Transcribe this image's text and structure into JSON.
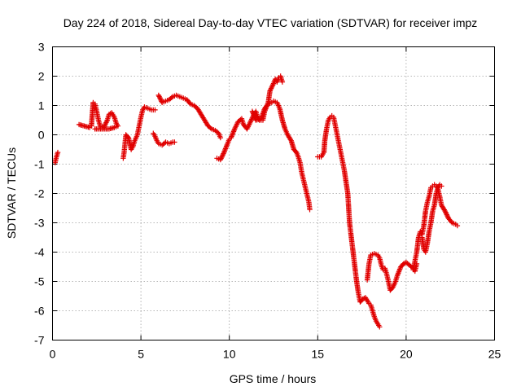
{
  "chart_data": {
    "type": "scatter",
    "title": "Day 224 of 2018, Sidereal Day-to-day VTEC variation (SDTVAR) for receiver impz",
    "xlabel": "GPS time / hours",
    "ylabel": "SDTVAR / TECUs",
    "xlim": [
      0,
      25
    ],
    "ylim": [
      -7,
      3
    ],
    "xticks": [
      "0",
      "5",
      "10",
      "15",
      "20",
      "25"
    ],
    "yticks": [
      "-7",
      "-6",
      "-5",
      "-4",
      "-3",
      "-2",
      "-1",
      "0",
      "1",
      "2",
      "3"
    ],
    "grid": true,
    "marker": "plus",
    "color": "#e00000",
    "series": [
      {
        "segments": [
          [
            [
              0.15,
              -0.95
            ],
            [
              0.2,
              -0.8
            ],
            [
              0.25,
              -0.7
            ],
            [
              0.3,
              -0.6
            ]
          ],
          [
            [
              1.5,
              0.35
            ],
            [
              1.8,
              0.3
            ],
            [
              2.1,
              0.25
            ],
            [
              2.2,
              0.3
            ],
            [
              2.3,
              1.1
            ],
            [
              2.4,
              1.05
            ],
            [
              2.5,
              0.8
            ],
            [
              2.6,
              0.5
            ],
            [
              2.7,
              0.3
            ],
            [
              2.9,
              0.25
            ],
            [
              3.1,
              0.5
            ],
            [
              3.2,
              0.7
            ],
            [
              3.35,
              0.75
            ],
            [
              3.5,
              0.6
            ],
            [
              3.6,
              0.4
            ],
            [
              3.7,
              0.3
            ],
            [
              3.5,
              0.25
            ],
            [
              3.2,
              0.2
            ],
            [
              2.8,
              0.2
            ],
            [
              2.4,
              0.2
            ]
          ],
          [
            [
              4.0,
              -0.8
            ],
            [
              4.05,
              -0.6
            ],
            [
              4.1,
              -0.3
            ],
            [
              4.15,
              0.0
            ],
            [
              4.3,
              -0.1
            ],
            [
              4.45,
              -0.5
            ],
            [
              4.55,
              -0.4
            ],
            [
              4.65,
              -0.2
            ],
            [
              4.8,
              0.0
            ],
            [
              4.9,
              0.3
            ],
            [
              5.0,
              0.6
            ],
            [
              5.1,
              0.85
            ],
            [
              5.2,
              0.95
            ],
            [
              5.4,
              0.9
            ],
            [
              5.6,
              0.85
            ],
            [
              5.8,
              0.85
            ]
          ],
          [
            [
              5.7,
              0.05
            ],
            [
              5.8,
              -0.05
            ],
            [
              5.9,
              -0.2
            ],
            [
              6.0,
              -0.3
            ],
            [
              6.2,
              -0.35
            ],
            [
              6.4,
              -0.25
            ],
            [
              6.6,
              -0.3
            ],
            [
              6.8,
              -0.25
            ],
            [
              6.9,
              -0.25
            ]
          ],
          [
            [
              6.0,
              1.35
            ],
            [
              6.2,
              1.1
            ],
            [
              6.4,
              1.15
            ],
            [
              6.6,
              1.2
            ],
            [
              6.8,
              1.3
            ],
            [
              7.0,
              1.35
            ],
            [
              7.2,
              1.3
            ],
            [
              7.4,
              1.25
            ],
            [
              7.6,
              1.2
            ],
            [
              7.8,
              1.05
            ],
            [
              8.0,
              1.0
            ],
            [
              8.2,
              0.9
            ],
            [
              8.4,
              0.7
            ],
            [
              8.6,
              0.5
            ],
            [
              8.8,
              0.3
            ],
            [
              9.0,
              0.2
            ],
            [
              9.2,
              0.15
            ],
            [
              9.4,
              0.05
            ],
            [
              9.5,
              -0.1
            ]
          ],
          [
            [
              9.3,
              -0.8
            ],
            [
              9.5,
              -0.85
            ],
            [
              9.7,
              -0.6
            ],
            [
              9.9,
              -0.3
            ],
            [
              10.0,
              -0.15
            ],
            [
              10.1,
              -0.1
            ],
            [
              10.3,
              0.2
            ],
            [
              10.5,
              0.45
            ],
            [
              10.7,
              0.55
            ],
            [
              10.8,
              0.35
            ],
            [
              11.0,
              0.2
            ],
            [
              11.2,
              0.45
            ],
            [
              11.4,
              0.7
            ],
            [
              11.5,
              0.8
            ],
            [
              11.6,
              0.6
            ],
            [
              11.7,
              0.5
            ],
            [
              11.9,
              0.5
            ],
            [
              12.0,
              0.8
            ],
            [
              12.2,
              1.1
            ],
            [
              12.3,
              1.5
            ],
            [
              12.5,
              1.75
            ],
            [
              12.6,
              1.9
            ],
            [
              12.7,
              1.8
            ],
            [
              12.8,
              1.95
            ],
            [
              12.9,
              2.0
            ],
            [
              13.0,
              1.8
            ]
          ],
          [
            [
              11.3,
              0.8
            ],
            [
              11.5,
              0.5
            ],
            [
              11.8,
              0.55
            ],
            [
              12.0,
              0.9
            ],
            [
              12.2,
              1.05
            ],
            [
              12.4,
              1.1
            ],
            [
              12.5,
              1.15
            ],
            [
              12.7,
              1.1
            ],
            [
              12.85,
              0.9
            ],
            [
              13.0,
              0.5
            ],
            [
              13.15,
              0.2
            ],
            [
              13.3,
              0.0
            ],
            [
              13.5,
              -0.2
            ],
            [
              13.65,
              -0.5
            ],
            [
              13.8,
              -0.6
            ],
            [
              13.9,
              -0.75
            ],
            [
              14.0,
              -0.95
            ],
            [
              14.1,
              -1.3
            ],
            [
              14.2,
              -1.55
            ],
            [
              14.3,
              -1.8
            ],
            [
              14.4,
              -2.05
            ],
            [
              14.5,
              -2.3
            ],
            [
              14.55,
              -2.55
            ]
          ],
          [
            [
              15.0,
              -0.75
            ],
            [
              15.2,
              -0.75
            ],
            [
              15.35,
              -0.6
            ],
            [
              15.4,
              -0.2
            ],
            [
              15.5,
              0.2
            ],
            [
              15.6,
              0.5
            ],
            [
              15.7,
              0.6
            ],
            [
              15.8,
              0.65
            ],
            [
              15.9,
              0.6
            ],
            [
              16.0,
              0.3
            ],
            [
              16.1,
              0.0
            ],
            [
              16.2,
              -0.3
            ],
            [
              16.3,
              -0.6
            ],
            [
              16.4,
              -0.9
            ],
            [
              16.5,
              -1.2
            ],
            [
              16.6,
              -1.6
            ],
            [
              16.7,
              -2.0
            ],
            [
              16.75,
              -2.5
            ],
            [
              16.8,
              -3.0
            ],
            [
              16.9,
              -3.5
            ],
            [
              17.0,
              -4.0
            ],
            [
              17.1,
              -4.5
            ],
            [
              17.2,
              -5.0
            ],
            [
              17.3,
              -5.4
            ],
            [
              17.4,
              -5.7
            ],
            [
              17.55,
              -5.6
            ],
            [
              17.7,
              -5.55
            ],
            [
              17.8,
              -5.65
            ],
            [
              17.9,
              -5.75
            ],
            [
              18.0,
              -5.8
            ],
            [
              18.1,
              -6.0
            ],
            [
              18.2,
              -6.2
            ],
            [
              18.3,
              -6.35
            ],
            [
              18.4,
              -6.45
            ],
            [
              18.5,
              -6.55
            ]
          ],
          [
            [
              17.8,
              -4.95
            ],
            [
              17.9,
              -4.4
            ],
            [
              18.0,
              -4.1
            ],
            [
              18.2,
              -4.05
            ],
            [
              18.4,
              -4.1
            ],
            [
              18.5,
              -4.2
            ],
            [
              18.6,
              -4.45
            ],
            [
              18.7,
              -4.6
            ],
            [
              18.8,
              -4.55
            ],
            [
              18.9,
              -4.75
            ],
            [
              19.0,
              -5.0
            ],
            [
              19.1,
              -5.3
            ],
            [
              19.25,
              -5.2
            ],
            [
              19.4,
              -5.0
            ],
            [
              19.5,
              -4.8
            ],
            [
              19.7,
              -4.5
            ],
            [
              19.85,
              -4.4
            ],
            [
              20.0,
              -4.35
            ],
            [
              20.2,
              -4.45
            ],
            [
              20.4,
              -4.55
            ],
            [
              20.5,
              -4.65
            ],
            [
              20.6,
              -4.4
            ]
          ],
          [
            [
              20.4,
              -4.6
            ],
            [
              20.5,
              -4.3
            ],
            [
              20.6,
              -4.0
            ],
            [
              20.7,
              -3.5
            ],
            [
              20.8,
              -3.3
            ],
            [
              20.9,
              -3.4
            ],
            [
              21.0,
              -3.1
            ],
            [
              21.1,
              -2.6
            ],
            [
              21.2,
              -2.3
            ],
            [
              21.3,
              -2.1
            ],
            [
              21.4,
              -1.8
            ],
            [
              21.5,
              -1.75
            ],
            [
              21.6,
              -1.7
            ],
            [
              21.7,
              -1.75
            ],
            [
              21.8,
              -1.85
            ],
            [
              21.9,
              -2.1
            ],
            [
              22.0,
              -2.4
            ],
            [
              22.2,
              -2.6
            ],
            [
              22.4,
              -2.85
            ],
            [
              22.6,
              -3.0
            ],
            [
              22.8,
              -3.05
            ],
            [
              22.9,
              -3.1
            ]
          ],
          [
            [
              20.9,
              -3.5
            ],
            [
              21.0,
              -3.9
            ],
            [
              21.1,
              -4.0
            ],
            [
              21.2,
              -3.7
            ],
            [
              21.3,
              -3.3
            ],
            [
              21.4,
              -3.0
            ],
            [
              21.5,
              -2.6
            ],
            [
              21.6,
              -2.4
            ],
            [
              21.7,
              -2.0
            ],
            [
              21.8,
              -1.8
            ],
            [
              21.9,
              -1.7
            ],
            [
              22.0,
              -1.75
            ]
          ]
        ]
      }
    ]
  }
}
